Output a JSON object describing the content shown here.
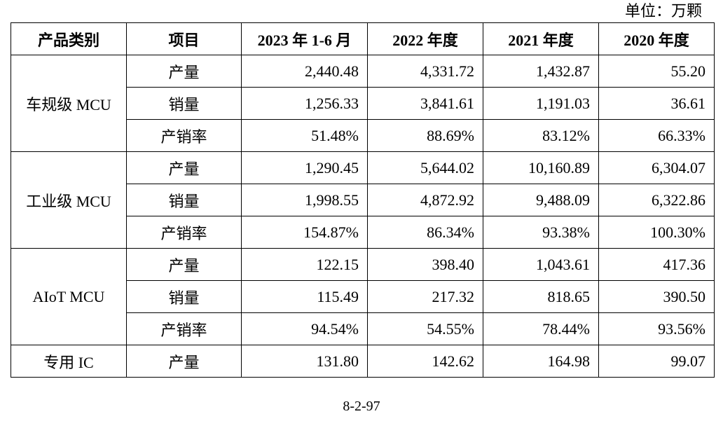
{
  "unit_label": "单位：万颗",
  "headers": [
    "产品类别",
    "项目",
    "2023 年 1-6 月",
    "2022 年度",
    "2021 年度",
    "2020 年度"
  ],
  "groups": [
    {
      "category": "车规级 MCU",
      "rows": [
        {
          "item": "产量",
          "values": [
            "2,440.48",
            "4,331.72",
            "1,432.87",
            "55.20"
          ]
        },
        {
          "item": "销量",
          "values": [
            "1,256.33",
            "3,841.61",
            "1,191.03",
            "36.61"
          ]
        },
        {
          "item": "产销率",
          "values": [
            "51.48%",
            "88.69%",
            "83.12%",
            "66.33%"
          ]
        }
      ]
    },
    {
      "category": "工业级 MCU",
      "rows": [
        {
          "item": "产量",
          "values": [
            "1,290.45",
            "5,644.02",
            "10,160.89",
            "6,304.07"
          ]
        },
        {
          "item": "销量",
          "values": [
            "1,998.55",
            "4,872.92",
            "9,488.09",
            "6,322.86"
          ]
        },
        {
          "item": "产销率",
          "values": [
            "154.87%",
            "86.34%",
            "93.38%",
            "100.30%"
          ]
        }
      ]
    },
    {
      "category": "AIoT MCU",
      "rows": [
        {
          "item": "产量",
          "values": [
            "122.15",
            "398.40",
            "1,043.61",
            "417.36"
          ]
        },
        {
          "item": "销量",
          "values": [
            "115.49",
            "217.32",
            "818.65",
            "390.50"
          ]
        },
        {
          "item": "产销率",
          "values": [
            "94.54%",
            "54.55%",
            "78.44%",
            "93.56%"
          ]
        }
      ]
    },
    {
      "category": "专用 IC",
      "rows": [
        {
          "item": "产量",
          "values": [
            "131.80",
            "142.62",
            "164.98",
            "99.07"
          ]
        }
      ]
    }
  ],
  "page_number": "8-2-97"
}
